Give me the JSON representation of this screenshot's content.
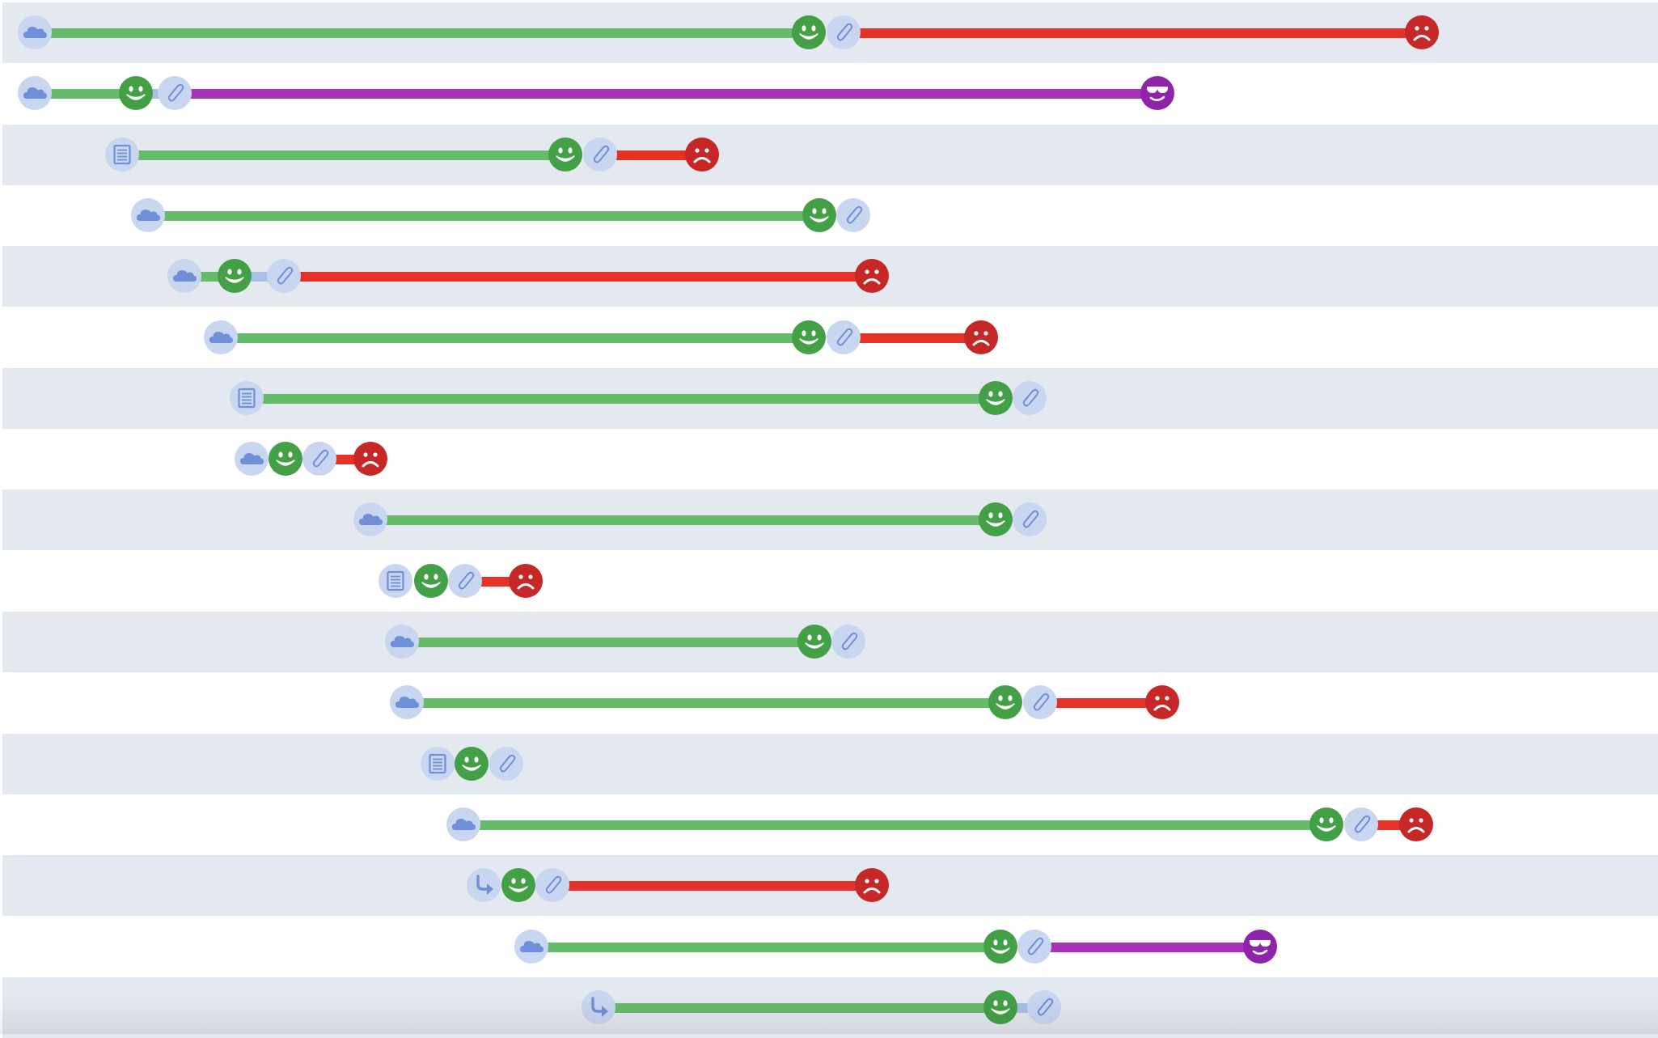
{
  "colors": {
    "row_alt": "#e4e8ef",
    "row_plain": "#ffffff",
    "node_light": "#c9d6f0",
    "node_icon": "#6f8fd9",
    "segment_green": "#66bb6a",
    "segment_red": "#e53228",
    "segment_purple": "#a633b8",
    "segment_link": "#a9bfe6",
    "happy": "#43a047",
    "sad": "#c62828",
    "cool": "#8e24aa"
  },
  "icon_names": {
    "cloud": "cloud-icon",
    "doc": "document-icon",
    "redirect": "redirect-arrow-icon",
    "attach": "paperclip-icon",
    "happy": "happy-face-icon",
    "sad": "sad-face-icon",
    "cool": "sunglasses-face-icon"
  },
  "rows": [
    {
      "stripe": "alt",
      "nodes": [
        [
          "cloud",
          40
        ],
        [
          "happy",
          997
        ],
        [
          "attach",
          1040
        ],
        [
          "sad",
          1755
        ]
      ],
      "segments": [
        [
          "green",
          40,
          997
        ],
        [
          "red",
          1040,
          1755
        ]
      ]
    },
    {
      "stripe": "plain",
      "nodes": [
        [
          "cloud",
          40
        ],
        [
          "happy",
          165
        ],
        [
          "attach",
          213
        ],
        [
          "cool",
          1428
        ]
      ],
      "segments": [
        [
          "green",
          40,
          165
        ],
        [
          "link",
          165,
          213
        ],
        [
          "purple",
          213,
          1428
        ]
      ]
    },
    {
      "stripe": "alt",
      "nodes": [
        [
          "doc",
          148
        ],
        [
          "happy",
          696
        ],
        [
          "attach",
          739
        ],
        [
          "sad",
          865
        ]
      ],
      "segments": [
        [
          "green",
          148,
          696
        ],
        [
          "red",
          739,
          865
        ]
      ]
    },
    {
      "stripe": "plain",
      "nodes": [
        [
          "cloud",
          180
        ],
        [
          "happy",
          1010
        ],
        [
          "attach",
          1052
        ]
      ],
      "segments": [
        [
          "green",
          180,
          1010
        ]
      ]
    },
    {
      "stripe": "alt",
      "nodes": [
        [
          "cloud",
          225
        ],
        [
          "happy",
          287
        ],
        [
          "attach",
          348
        ],
        [
          "sad",
          1075
        ]
      ],
      "segments": [
        [
          "green",
          225,
          287
        ],
        [
          "link",
          287,
          348
        ],
        [
          "red",
          348,
          1075
        ]
      ]
    },
    {
      "stripe": "plain",
      "nodes": [
        [
          "cloud",
          270
        ],
        [
          "happy",
          997
        ],
        [
          "attach",
          1040
        ],
        [
          "sad",
          1210
        ]
      ],
      "segments": [
        [
          "green",
          270,
          997
        ],
        [
          "red",
          1040,
          1210
        ]
      ]
    },
    {
      "stripe": "alt",
      "nodes": [
        [
          "doc",
          302
        ],
        [
          "happy",
          1228
        ],
        [
          "attach",
          1270
        ]
      ],
      "segments": [
        [
          "green",
          302,
          1228
        ]
      ]
    },
    {
      "stripe": "plain",
      "nodes": [
        [
          "cloud",
          308
        ],
        [
          "happy",
          350
        ],
        [
          "attach",
          392
        ],
        [
          "sad",
          455
        ]
      ],
      "segments": [
        [
          "red",
          392,
          455
        ]
      ]
    },
    {
      "stripe": "alt",
      "nodes": [
        [
          "cloud",
          455
        ],
        [
          "happy",
          1228
        ],
        [
          "attach",
          1270
        ]
      ],
      "segments": [
        [
          "green",
          455,
          1228
        ]
      ]
    },
    {
      "stripe": "plain",
      "nodes": [
        [
          "doc",
          486
        ],
        [
          "happy",
          530
        ],
        [
          "attach",
          572
        ],
        [
          "sad",
          647
        ]
      ],
      "segments": [
        [
          "red",
          572,
          647
        ]
      ]
    },
    {
      "stripe": "alt",
      "nodes": [
        [
          "cloud",
          494
        ],
        [
          "happy",
          1004
        ],
        [
          "attach",
          1046
        ]
      ],
      "segments": [
        [
          "green",
          494,
          1004
        ]
      ]
    },
    {
      "stripe": "plain",
      "nodes": [
        [
          "cloud",
          500
        ],
        [
          "happy",
          1240
        ],
        [
          "attach",
          1283
        ],
        [
          "sad",
          1434
        ]
      ],
      "segments": [
        [
          "green",
          500,
          1240
        ],
        [
          "red",
          1283,
          1434
        ]
      ]
    },
    {
      "stripe": "alt",
      "nodes": [
        [
          "doc",
          538
        ],
        [
          "happy",
          580
        ],
        [
          "attach",
          623
        ]
      ],
      "segments": []
    },
    {
      "stripe": "plain",
      "nodes": [
        [
          "cloud",
          570
        ],
        [
          "happy",
          1637
        ],
        [
          "attach",
          1680
        ],
        [
          "sad",
          1748
        ]
      ],
      "segments": [
        [
          "green",
          570,
          1637
        ],
        [
          "red",
          1680,
          1748
        ]
      ]
    },
    {
      "stripe": "alt",
      "nodes": [
        [
          "redirect",
          595
        ],
        [
          "happy",
          638
        ],
        [
          "attach",
          680
        ],
        [
          "sad",
          1075
        ]
      ],
      "segments": [
        [
          "red",
          680,
          1075
        ]
      ]
    },
    {
      "stripe": "plain",
      "nodes": [
        [
          "cloud",
          654
        ],
        [
          "happy",
          1234
        ],
        [
          "attach",
          1276
        ],
        [
          "cool",
          1555
        ]
      ],
      "segments": [
        [
          "green",
          654,
          1234
        ],
        [
          "purple",
          1276,
          1555
        ]
      ]
    },
    {
      "stripe": "alt",
      "nodes": [
        [
          "redirect",
          737
        ],
        [
          "happy",
          1234
        ],
        [
          "attach",
          1288
        ]
      ],
      "segments": [
        [
          "green",
          737,
          1234
        ],
        [
          "link",
          1234,
          1288
        ]
      ]
    }
  ]
}
